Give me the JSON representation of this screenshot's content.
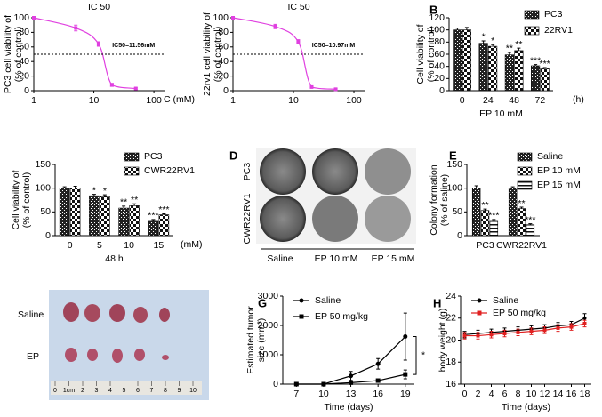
{
  "chart_data": [
    {
      "type": "scatter-fit",
      "title": "IC 50",
      "ylabel": [
        "PC3 cell viability of",
        "(% of control)"
      ],
      "xunit": "C (mM)",
      "x": [
        1,
        5,
        12,
        20,
        50
      ],
      "values": [
        100,
        86,
        64,
        8,
        3
      ],
      "errors": [
        1,
        4,
        3,
        2,
        1
      ],
      "color": "#e040e0",
      "marker": "square",
      "xscale": "log",
      "xlim": [
        1,
        150
      ],
      "xticks": [
        1,
        10,
        100
      ],
      "ylim": [
        0,
        100
      ],
      "yticks": [
        0,
        20,
        40,
        60,
        80,
        100
      ],
      "hline": 50,
      "annotation": "IC50=11.56mM"
    },
    {
      "type": "scatter-fit",
      "title": "IC 50",
      "ylabel": [
        "22rv1 cell viability of",
        "(% of control)"
      ],
      "x": [
        1,
        5,
        12,
        20,
        50
      ],
      "values": [
        100,
        88,
        67,
        5,
        2
      ],
      "errors": [
        1,
        3,
        3,
        1,
        1
      ],
      "color": "#e040e0",
      "marker": "square",
      "xscale": "log",
      "xlim": [
        1,
        150
      ],
      "xticks": [
        1,
        10,
        100
      ],
      "ylim": [
        0,
        100
      ],
      "yticks": [
        0,
        20,
        40,
        60,
        80,
        100
      ],
      "hline": 50,
      "annotation": "IC50=10.97mM"
    },
    {
      "type": "bar",
      "letter": "B",
      "ylabel": [
        "Cell viability of",
        "(% of control)"
      ],
      "xlabel": "EP 10 mM",
      "xunit": "(h)",
      "categories": [
        "0",
        "24",
        "48",
        "72"
      ],
      "series": [
        {
          "name": "PC3",
          "color": "#000000",
          "values": [
            100,
            78,
            59,
            41
          ],
          "errors": [
            3,
            4,
            4,
            2
          ],
          "stars": [
            null,
            "*",
            "**",
            "***"
          ]
        },
        {
          "name": "22RV1",
          "color": "#000000",
          "values": [
            100,
            73,
            66,
            36
          ],
          "errors": [
            4,
            3,
            4,
            2
          ],
          "stars": [
            null,
            "*",
            "**",
            "***"
          ]
        }
      ],
      "ylim": [
        0,
        120
      ],
      "yticks": [
        0,
        20,
        40,
        60,
        80,
        100,
        120
      ]
    },
    {
      "type": "bar",
      "ylabel": [
        "Cell viability of",
        "(% of control)"
      ],
      "xlabel": "48 h",
      "xunit": "(mM)",
      "categories": [
        "0",
        "5",
        "10",
        "15"
      ],
      "series": [
        {
          "name": "PC3",
          "color": "#000000",
          "values": [
            100,
            84,
            58,
            32
          ],
          "errors": [
            3,
            3,
            4,
            2
          ],
          "stars": [
            null,
            "*",
            "**",
            "***"
          ]
        },
        {
          "name": "CWR22RV1",
          "color": "#000000",
          "values": [
            100,
            82,
            63,
            44
          ],
          "errors": [
            4,
            4,
            4,
            2
          ],
          "stars": [
            null,
            "*",
            "**",
            "***"
          ]
        }
      ],
      "ylim": [
        0,
        150
      ],
      "yticks": [
        0,
        50,
        100,
        150
      ]
    },
    {
      "type": "bar",
      "letter": "E",
      "ylabel": [
        "Colony formation",
        "(% of saline)"
      ],
      "categories": [
        "PC3",
        "CWR22RV1"
      ],
      "series": [
        {
          "name": "Saline",
          "color": "#000000",
          "values": [
            100,
            100
          ],
          "errors": [
            5,
            3
          ],
          "stars": [
            null,
            null
          ]
        },
        {
          "name": "EP 10 mM",
          "color": "#000000",
          "values": [
            53,
            57
          ],
          "errors": [
            3,
            3
          ],
          "stars": [
            "**",
            "**"
          ]
        },
        {
          "name": "EP 15 mM",
          "color": "#000000",
          "values": [
            32,
            23
          ],
          "errors": [
            2,
            2
          ],
          "stars": [
            "***",
            "***"
          ]
        }
      ],
      "ylim": [
        0,
        150
      ],
      "yticks": [
        0,
        50,
        100,
        150
      ]
    },
    {
      "type": "line",
      "letter": "G",
      "ylabel": [
        "Estimated tumor",
        "size (mm³)"
      ],
      "xlabel": "Time (days)",
      "annotation": "*",
      "x": [
        7,
        10,
        13,
        16,
        19
      ],
      "series": [
        {
          "name": "Saline",
          "color": "#000000",
          "marker": "circle",
          "values": [
            0,
            0,
            280,
            690,
            1620
          ],
          "errors": [
            0,
            0,
            150,
            180,
            800
          ]
        },
        {
          "name": "EP 50 mg/kg",
          "color": "#000000",
          "marker": "square",
          "values": [
            0,
            0,
            50,
            120,
            330
          ],
          "errors": [
            0,
            0,
            30,
            50,
            150
          ]
        }
      ],
      "xlim": [
        5.5,
        20
      ],
      "xticks": [
        7,
        10,
        13,
        16,
        19
      ],
      "ylim": [
        0,
        3000
      ],
      "yticks": [
        0,
        1000,
        2000,
        3000
      ]
    },
    {
      "type": "line",
      "letter": "H",
      "ylabel": [
        "body weight (g)"
      ],
      "xlabel": "Time (days)",
      "x": [
        0,
        2,
        4,
        6,
        8,
        10,
        12,
        14,
        16,
        18
      ],
      "series": [
        {
          "name": "Saline",
          "color": "#000000",
          "marker": "circle",
          "values": [
            20.5,
            20.6,
            20.7,
            20.8,
            20.9,
            21.0,
            21.1,
            21.3,
            21.4,
            22.0
          ],
          "errors": [
            0.3,
            0.3,
            0.3,
            0.3,
            0.3,
            0.3,
            0.3,
            0.3,
            0.3,
            0.4
          ]
        },
        {
          "name": "EP 50 mg/kg",
          "color": "#e02020",
          "marker": "square",
          "values": [
            20.4,
            20.4,
            20.5,
            20.6,
            20.7,
            20.8,
            20.9,
            21.1,
            21.2,
            21.5
          ],
          "errors": [
            0.3,
            0.3,
            0.3,
            0.3,
            0.3,
            0.3,
            0.3,
            0.3,
            0.3,
            0.3
          ]
        }
      ],
      "xlim": [
        -0.6,
        19
      ],
      "xticks": [
        0,
        2,
        4,
        6,
        8,
        10,
        12,
        14,
        16,
        18
      ],
      "ylim": [
        16,
        24
      ],
      "yticks": [
        16,
        18,
        20,
        22,
        24
      ]
    }
  ],
  "photo_panels": [
    {
      "letter": "D",
      "rows": [
        "PC3",
        "CWR22RV1"
      ],
      "cols": [
        "Saline",
        "EP 10 mM",
        "EP 15 mM"
      ]
    },
    {
      "rows": [
        "Saline",
        "EP"
      ],
      "ruler": [
        "0",
        "1cm",
        "2",
        "3",
        "4",
        "5",
        "6",
        "7",
        "8",
        "9",
        "10"
      ]
    }
  ]
}
